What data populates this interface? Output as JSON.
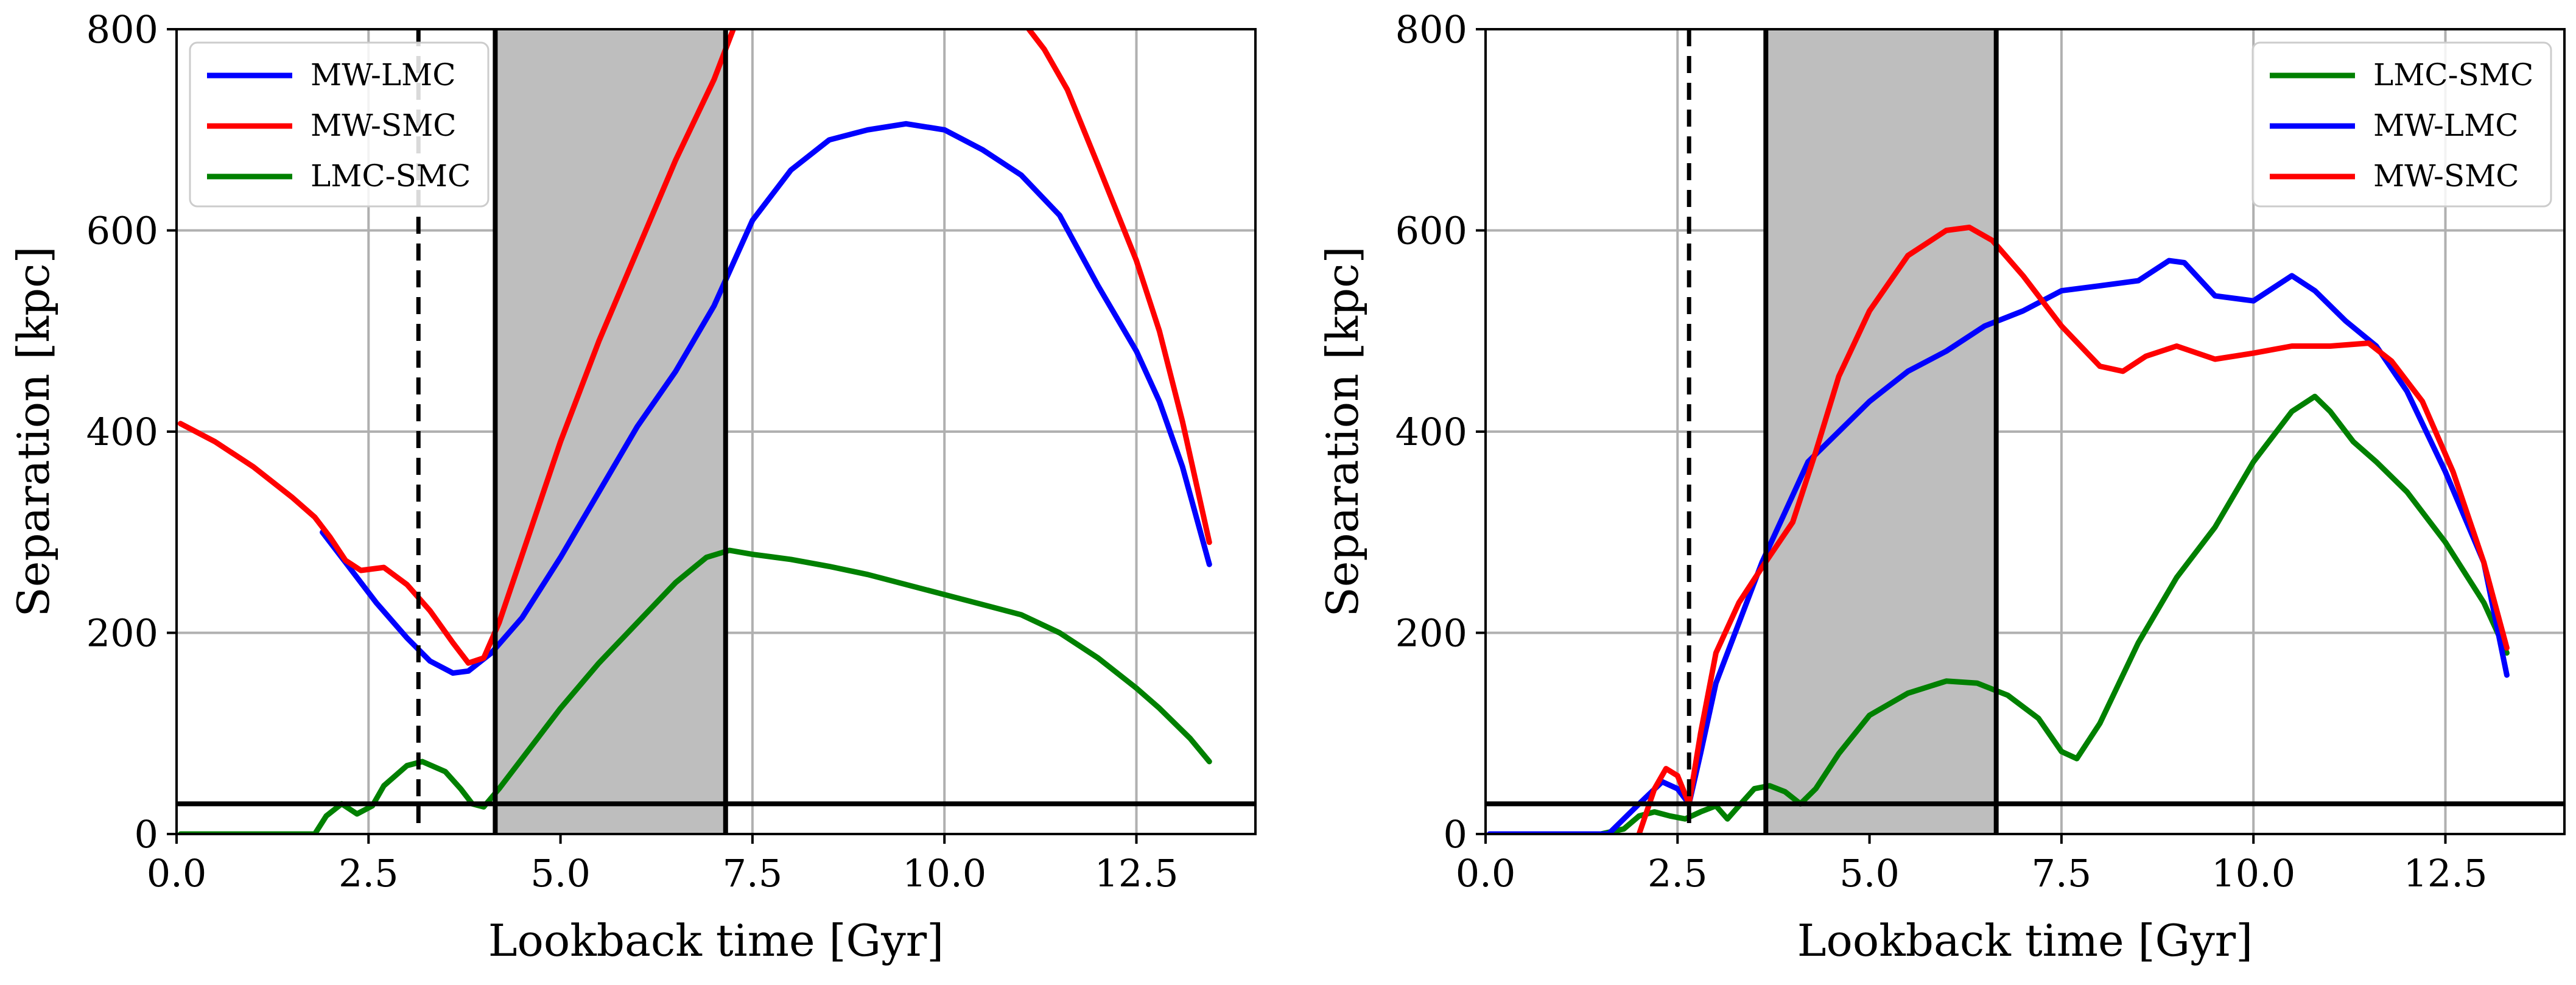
{
  "chart_data": [
    {
      "type": "line",
      "xlabel": "Lookback time [Gyr]",
      "ylabel": "Separation [kpc]",
      "xlim": [
        0,
        14.05
      ],
      "ylim": [
        0,
        800
      ],
      "xticks": [
        "0.0",
        "2.5",
        "5.0",
        "7.5",
        "10.0",
        "12.5"
      ],
      "yticks": [
        "0",
        "200",
        "400",
        "600",
        "800"
      ],
      "grid": true,
      "legend_position": "top-left",
      "shaded_band": [
        4.15,
        7.15
      ],
      "vlines_solid": [
        4.15,
        7.15
      ],
      "vline_dashed": 3.15,
      "hline": 30,
      "series": [
        {
          "name": "MW-LMC",
          "color": "#0000ff",
          "points": [
            [
              1.9,
              300
            ],
            [
              2.2,
              270
            ],
            [
              2.6,
              230
            ],
            [
              3.0,
              195
            ],
            [
              3.3,
              172
            ],
            [
              3.6,
              160
            ],
            [
              3.8,
              162
            ],
            [
              4.1,
              180
            ],
            [
              4.5,
              215
            ],
            [
              5.0,
              275
            ],
            [
              5.5,
              340
            ],
            [
              6.0,
              405
            ],
            [
              6.5,
              460
            ],
            [
              7.0,
              525
            ],
            [
              7.5,
              610
            ],
            [
              8.0,
              660
            ],
            [
              8.5,
              690
            ],
            [
              9.0,
              700
            ],
            [
              9.5,
              706
            ],
            [
              10.0,
              700
            ],
            [
              10.5,
              680
            ],
            [
              11.0,
              655
            ],
            [
              11.5,
              615
            ],
            [
              12.0,
              545
            ],
            [
              12.5,
              480
            ],
            [
              12.8,
              430
            ],
            [
              13.1,
              365
            ],
            [
              13.45,
              268
            ]
          ]
        },
        {
          "name": "MW-SMC",
          "color": "#ff0000",
          "points": [
            [
              0.05,
              408
            ],
            [
              0.5,
              390
            ],
            [
              1.0,
              365
            ],
            [
              1.5,
              335
            ],
            [
              1.8,
              315
            ],
            [
              2.0,
              295
            ],
            [
              2.2,
              272
            ],
            [
              2.4,
              262
            ],
            [
              2.7,
              265
            ],
            [
              3.0,
              248
            ],
            [
              3.3,
              222
            ],
            [
              3.6,
              190
            ],
            [
              3.8,
              170
            ],
            [
              4.0,
              175
            ],
            [
              4.2,
              210
            ],
            [
              4.6,
              300
            ],
            [
              5.0,
              390
            ],
            [
              5.5,
              490
            ],
            [
              6.0,
              580
            ],
            [
              6.5,
              670
            ],
            [
              7.0,
              750
            ],
            [
              7.25,
              800
            ]
          ]
        },
        {
          "name": "MW-SMC",
          "color": "#ff0000",
          "points": [
            [
              11.1,
              800
            ],
            [
              11.3,
              780
            ],
            [
              11.6,
              740
            ],
            [
              12.0,
              665
            ],
            [
              12.5,
              570
            ],
            [
              12.8,
              500
            ],
            [
              13.1,
              410
            ],
            [
              13.45,
              290
            ]
          ]
        },
        {
          "name": "LMC-SMC",
          "color": "#008000",
          "points": [
            [
              0.05,
              0
            ],
            [
              1.8,
              0
            ],
            [
              1.95,
              18
            ],
            [
              2.15,
              30
            ],
            [
              2.35,
              20
            ],
            [
              2.55,
              28
            ],
            [
              2.7,
              48
            ],
            [
              3.0,
              68
            ],
            [
              3.2,
              72
            ],
            [
              3.5,
              62
            ],
            [
              3.7,
              45
            ],
            [
              3.85,
              30
            ],
            [
              4.0,
              27
            ],
            [
              4.2,
              45
            ],
            [
              4.6,
              85
            ],
            [
              5.0,
              125
            ],
            [
              5.5,
              170
            ],
            [
              6.0,
              210
            ],
            [
              6.5,
              250
            ],
            [
              6.9,
              275
            ],
            [
              7.2,
              282
            ],
            [
              7.5,
              278
            ],
            [
              8.0,
              273
            ],
            [
              8.5,
              266
            ],
            [
              9.0,
              258
            ],
            [
              9.5,
              248
            ],
            [
              10.0,
              238
            ],
            [
              10.5,
              228
            ],
            [
              11.0,
              218
            ],
            [
              11.5,
              200
            ],
            [
              12.0,
              175
            ],
            [
              12.5,
              145
            ],
            [
              12.8,
              125
            ],
            [
              13.2,
              95
            ],
            [
              13.45,
              72
            ]
          ]
        }
      ]
    },
    {
      "type": "line",
      "xlabel": "Lookback time [Gyr]",
      "ylabel": "Separation [kpc]",
      "xlim": [
        0,
        14.05
      ],
      "ylim": [
        0,
        800
      ],
      "xticks": [
        "0.0",
        "2.5",
        "5.0",
        "7.5",
        "10.0",
        "12.5"
      ],
      "yticks": [
        "0",
        "200",
        "400",
        "600",
        "800"
      ],
      "grid": true,
      "legend_position": "top-right",
      "shaded_band": [
        3.65,
        6.65
      ],
      "vlines_solid": [
        3.65,
        6.65
      ],
      "vline_dashed": 2.65,
      "hline": 30,
      "series": [
        {
          "name": "LMC-SMC",
          "color": "#008000",
          "points": [
            [
              1.5,
              0
            ],
            [
              1.8,
              5
            ],
            [
              2.0,
              18
            ],
            [
              2.2,
              22
            ],
            [
              2.4,
              18
            ],
            [
              2.6,
              15
            ],
            [
              2.8,
              22
            ],
            [
              3.0,
              28
            ],
            [
              3.15,
              15
            ],
            [
              3.3,
              28
            ],
            [
              3.5,
              45
            ],
            [
              3.7,
              48
            ],
            [
              3.9,
              42
            ],
            [
              4.1,
              30
            ],
            [
              4.3,
              45
            ],
            [
              4.6,
              80
            ],
            [
              5.0,
              118
            ],
            [
              5.5,
              140
            ],
            [
              6.0,
              152
            ],
            [
              6.4,
              150
            ],
            [
              6.8,
              138
            ],
            [
              7.2,
              115
            ],
            [
              7.5,
              82
            ],
            [
              7.7,
              75
            ],
            [
              8.0,
              110
            ],
            [
              8.5,
              190
            ],
            [
              9.0,
              255
            ],
            [
              9.5,
              305
            ],
            [
              10.0,
              370
            ],
            [
              10.5,
              420
            ],
            [
              10.8,
              435
            ],
            [
              11.0,
              420
            ],
            [
              11.3,
              390
            ],
            [
              11.6,
              370
            ],
            [
              12.0,
              340
            ],
            [
              12.5,
              290
            ],
            [
              13.0,
              230
            ],
            [
              13.3,
              180
            ]
          ]
        },
        {
          "name": "MW-LMC",
          "color": "#0000ff",
          "points": [
            [
              0.05,
              0
            ],
            [
              1.6,
              0
            ],
            [
              1.8,
              15
            ],
            [
              2.0,
              30
            ],
            [
              2.3,
              52
            ],
            [
              2.5,
              45
            ],
            [
              2.65,
              30
            ],
            [
              2.8,
              80
            ],
            [
              3.0,
              150
            ],
            [
              3.3,
              210
            ],
            [
              3.6,
              270
            ],
            [
              3.9,
              320
            ],
            [
              4.2,
              370
            ],
            [
              4.6,
              400
            ],
            [
              5.0,
              430
            ],
            [
              5.5,
              460
            ],
            [
              6.0,
              480
            ],
            [
              6.5,
              505
            ],
            [
              7.0,
              520
            ],
            [
              7.5,
              540
            ],
            [
              8.0,
              545
            ],
            [
              8.5,
              550
            ],
            [
              8.9,
              570
            ],
            [
              9.1,
              568
            ],
            [
              9.5,
              535
            ],
            [
              10.0,
              530
            ],
            [
              10.5,
              555
            ],
            [
              10.8,
              540
            ],
            [
              11.2,
              510
            ],
            [
              11.6,
              485
            ],
            [
              12.0,
              440
            ],
            [
              12.5,
              360
            ],
            [
              13.0,
              270
            ],
            [
              13.3,
              158
            ]
          ]
        },
        {
          "name": "MW-SMC",
          "color": "#ff0000",
          "points": [
            [
              2.0,
              0
            ],
            [
              2.2,
              45
            ],
            [
              2.35,
              65
            ],
            [
              2.5,
              58
            ],
            [
              2.65,
              30
            ],
            [
              2.8,
              100
            ],
            [
              3.0,
              180
            ],
            [
              3.3,
              230
            ],
            [
              3.6,
              265
            ],
            [
              4.0,
              310
            ],
            [
              4.3,
              380
            ],
            [
              4.6,
              455
            ],
            [
              5.0,
              520
            ],
            [
              5.5,
              575
            ],
            [
              6.0,
              600
            ],
            [
              6.3,
              603
            ],
            [
              6.6,
              590
            ],
            [
              7.0,
              555
            ],
            [
              7.5,
              505
            ],
            [
              8.0,
              465
            ],
            [
              8.3,
              460
            ],
            [
              8.6,
              475
            ],
            [
              9.0,
              485
            ],
            [
              9.5,
              472
            ],
            [
              10.0,
              478
            ],
            [
              10.5,
              485
            ],
            [
              11.0,
              485
            ],
            [
              11.5,
              488
            ],
            [
              11.8,
              470
            ],
            [
              12.2,
              430
            ],
            [
              12.6,
              360
            ],
            [
              13.0,
              270
            ],
            [
              13.3,
              185
            ]
          ]
        }
      ]
    }
  ]
}
